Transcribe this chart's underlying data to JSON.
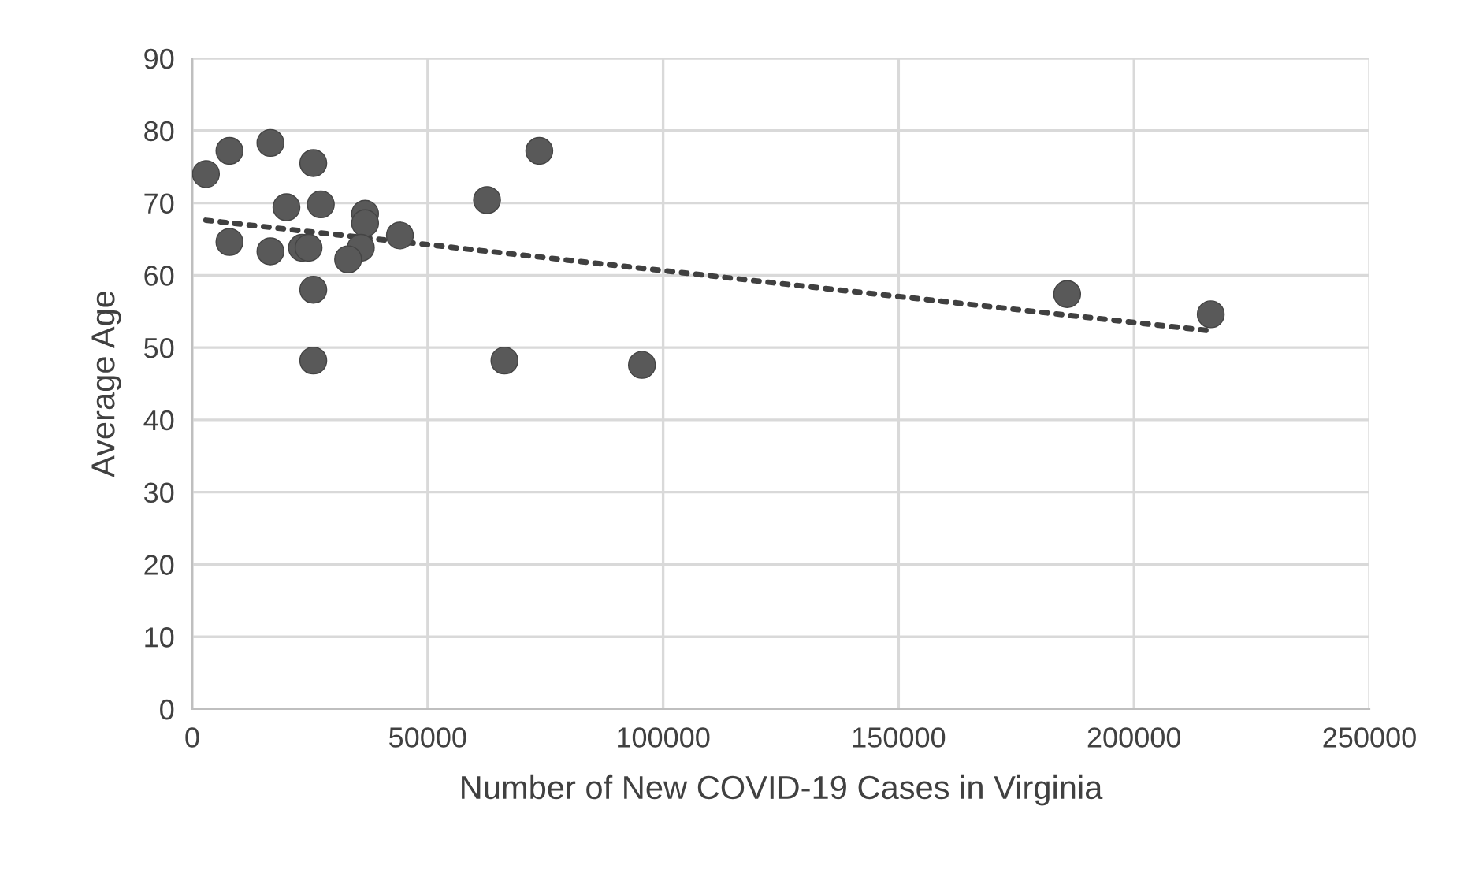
{
  "chart_data": {
    "type": "scatter",
    "xlabel": "Number of New COVID-19 Cases in Virginia",
    "ylabel": "Average Age",
    "xlim": [
      0,
      250000
    ],
    "xticks": [
      0,
      50000,
      100000,
      150000,
      200000,
      250000
    ],
    "ylim": [
      0,
      90
    ],
    "yticks": [
      0,
      10,
      20,
      30,
      40,
      50,
      60,
      70,
      80,
      90
    ],
    "grid": true,
    "series": [
      {
        "color": "#595959",
        "marker": "circle",
        "x": [
          2900,
          7900,
          16600,
          25700,
          20000,
          27300,
          36700,
          36700,
          7900,
          16600,
          23300,
          24700,
          35800,
          33100,
          44100,
          25700,
          25700,
          62600,
          73700,
          66300,
          95500,
          185800,
          216300
        ],
        "values": [
          74.0,
          77.2,
          78.3,
          75.5,
          69.4,
          69.8,
          68.5,
          67.2,
          64.6,
          63.3,
          63.8,
          63.8,
          63.8,
          62.2,
          65.5,
          58.0,
          48.2,
          70.4,
          77.2,
          48.2,
          47.6,
          57.4,
          54.6
        ]
      },
      {
        "type": "line",
        "line_style": "dotted",
        "color": "#404040",
        "x": [
          2900,
          216300
        ],
        "values": [
          67.6,
          52.3
        ]
      }
    ]
  }
}
